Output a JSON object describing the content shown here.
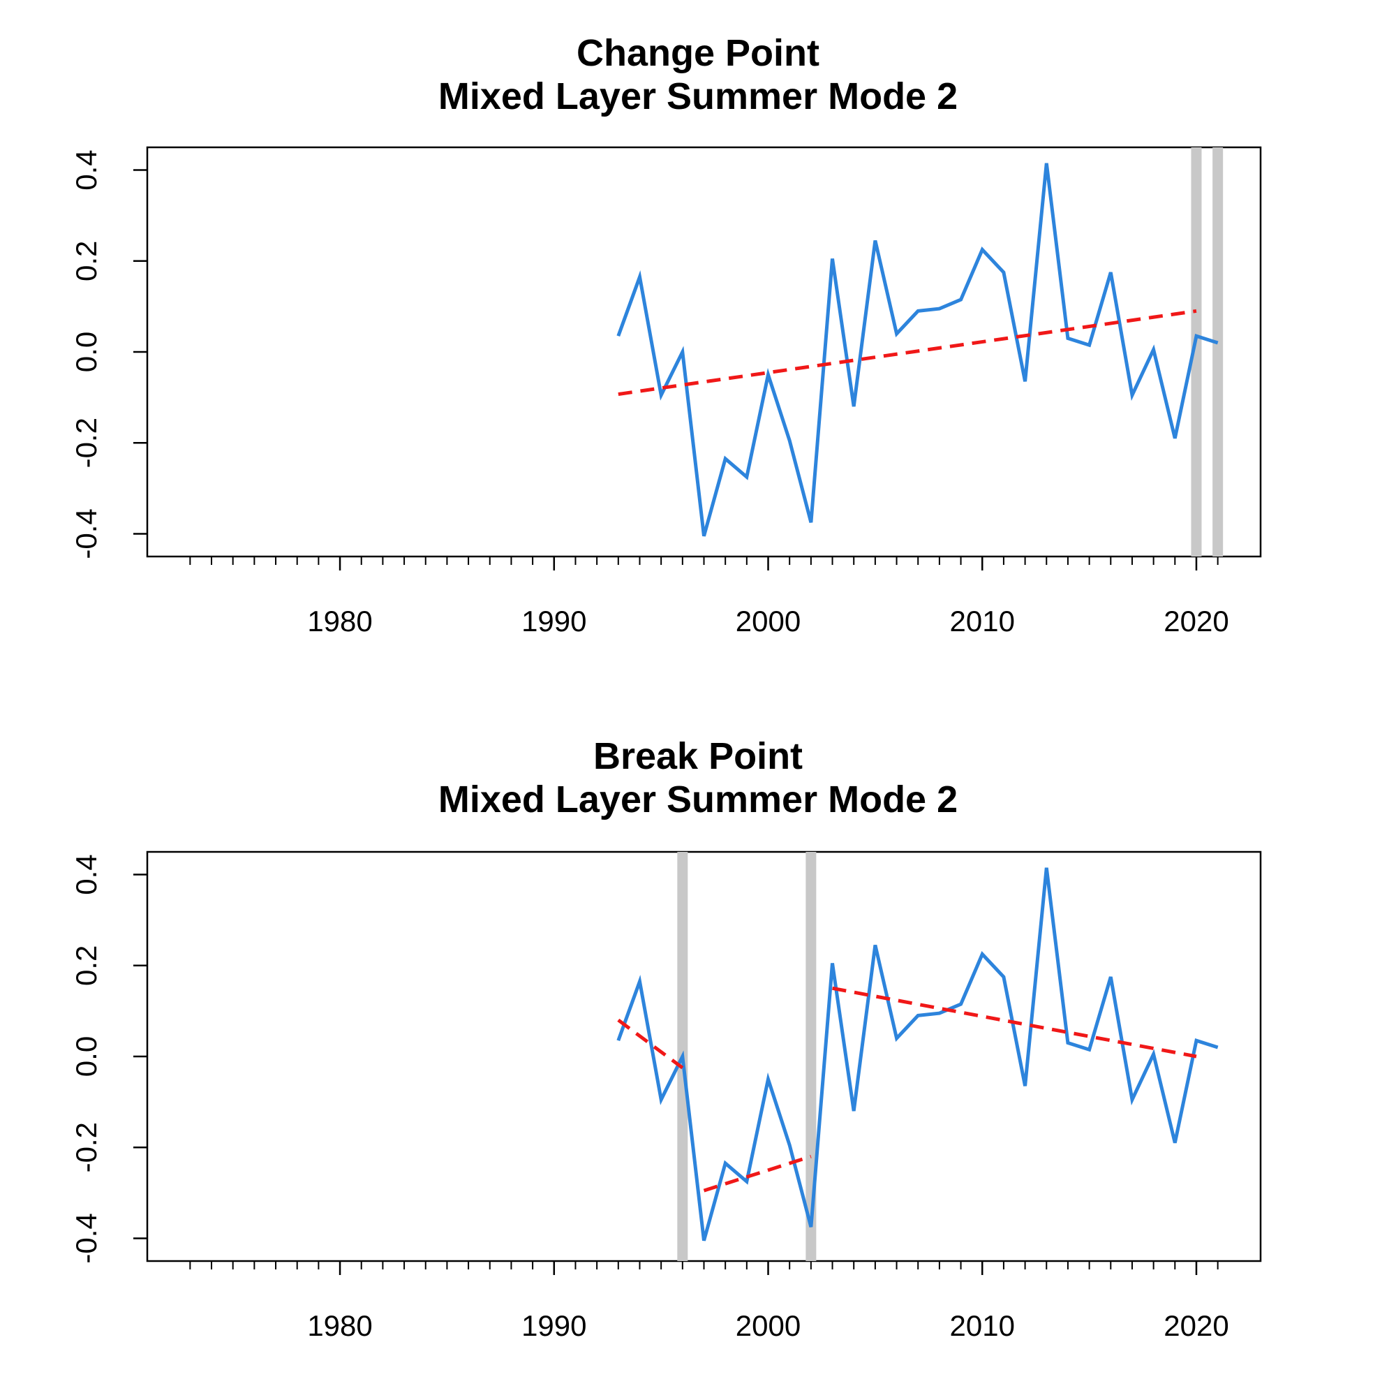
{
  "colors": {
    "series": "#2d84dc",
    "trend": "#f01818",
    "breakline": "#c8c8c8",
    "axis": "#000000",
    "background": "#ffffff"
  },
  "chart_data": [
    {
      "type": "line",
      "title": "Change Point",
      "subtitle": "Mixed Layer Summer Mode 2",
      "xlabel": "",
      "ylabel": "",
      "xlim": [
        1971,
        2023
      ],
      "ylim": [
        -0.45,
        0.45
      ],
      "xticks": [
        1980,
        1990,
        2000,
        2010,
        2020
      ],
      "xticklabels": [
        "1980",
        "1990",
        "2000",
        "2010",
        "2020"
      ],
      "yticks": [
        -0.4,
        -0.2,
        0.0,
        0.2,
        0.4
      ],
      "yticklabels": [
        "-0.4",
        "-0.2",
        "0.0",
        "0.2",
        "0.4"
      ],
      "minor_xticks": "yearly",
      "grid": false,
      "series": [
        {
          "x": [
            1993,
            1994,
            1995,
            1996,
            1997,
            1998,
            1999,
            2000,
            2001,
            2002,
            2003,
            2004,
            2005,
            2006,
            2007,
            2008,
            2009,
            2010,
            2011,
            2012,
            2013,
            2014,
            2015,
            2016,
            2017,
            2018,
            2019,
            2020,
            2021
          ],
          "values": [
            0.035,
            0.165,
            -0.095,
            0.0,
            -0.405,
            -0.235,
            -0.275,
            -0.05,
            -0.195,
            -0.375,
            0.205,
            -0.12,
            0.245,
            0.04,
            0.09,
            0.095,
            0.115,
            0.225,
            0.175,
            -0.065,
            0.415,
            0.03,
            0.015,
            0.175,
            -0.095,
            0.005,
            -0.19,
            0.035,
            0.02
          ]
        }
      ],
      "trend_segments": [
        {
          "x": [
            1993,
            2020
          ],
          "y": [
            -0.093,
            0.09
          ]
        }
      ],
      "breakpoints": [
        2020,
        2021
      ]
    },
    {
      "type": "line",
      "title": "Break Point",
      "subtitle": "Mixed Layer Summer Mode 2",
      "xlabel": "",
      "ylabel": "",
      "xlim": [
        1971,
        2023
      ],
      "ylim": [
        -0.45,
        0.45
      ],
      "xticks": [
        1980,
        1990,
        2000,
        2010,
        2020
      ],
      "xticklabels": [
        "1980",
        "1990",
        "2000",
        "2010",
        "2020"
      ],
      "yticks": [
        -0.4,
        -0.2,
        0.0,
        0.2,
        0.4
      ],
      "yticklabels": [
        "-0.4",
        "-0.2",
        "0.0",
        "0.2",
        "0.4"
      ],
      "minor_xticks": "yearly",
      "grid": false,
      "series": [
        {
          "x": [
            1993,
            1994,
            1995,
            1996,
            1997,
            1998,
            1999,
            2000,
            2001,
            2002,
            2003,
            2004,
            2005,
            2006,
            2007,
            2008,
            2009,
            2010,
            2011,
            2012,
            2013,
            2014,
            2015,
            2016,
            2017,
            2018,
            2019,
            2020,
            2021
          ],
          "values": [
            0.035,
            0.165,
            -0.095,
            0.0,
            -0.405,
            -0.235,
            -0.275,
            -0.05,
            -0.195,
            -0.375,
            0.205,
            -0.12,
            0.245,
            0.04,
            0.09,
            0.095,
            0.115,
            0.225,
            0.175,
            -0.065,
            0.415,
            0.03,
            0.015,
            0.175,
            -0.095,
            0.005,
            -0.19,
            0.035,
            0.02
          ]
        }
      ],
      "trend_segments": [
        {
          "x": [
            1993,
            1996
          ],
          "y": [
            0.08,
            -0.025
          ]
        },
        {
          "x": [
            1997,
            2002
          ],
          "y": [
            -0.295,
            -0.22
          ]
        },
        {
          "x": [
            2003,
            2020
          ],
          "y": [
            0.15,
            0.0
          ]
        }
      ],
      "breakpoints": [
        1996,
        2002
      ]
    }
  ]
}
